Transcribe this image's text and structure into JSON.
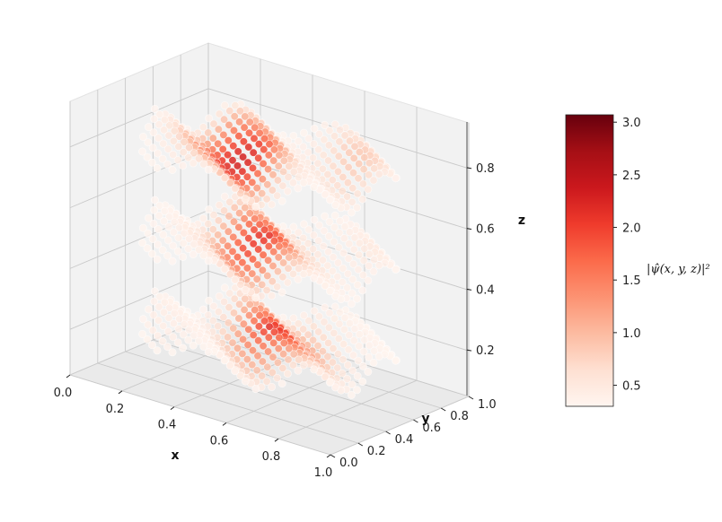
{
  "chart_data": {
    "type": "scatter3d",
    "title": "",
    "xlabel": "x",
    "ylabel": "y",
    "zlabel": "z",
    "xlim": [
      0.0,
      1.0
    ],
    "ylim": [
      0.0,
      1.0
    ],
    "zlim": [
      0.05,
      0.95
    ],
    "x_ticks": [
      "0.0",
      "0.2",
      "0.4",
      "0.6",
      "0.8",
      "1.0"
    ],
    "y_ticks": [
      "0.0",
      "0.2",
      "0.4",
      "0.6",
      "0.8",
      "1.0"
    ],
    "z_ticks": [
      "0.2",
      "0.4",
      "0.6",
      "0.8"
    ],
    "grid": true,
    "colormap": "Reds",
    "colorbar": {
      "label": "|ψ̂(x, y, z)|²",
      "min": 0.3,
      "max": 3.07,
      "ticks": [
        "0.5",
        "1.0",
        "1.5",
        "2.0",
        "2.5",
        "3.0"
      ]
    },
    "layers": [
      {
        "z": 0.2,
        "value_range": [
          0.3,
          2.2
        ]
      },
      {
        "z": 0.5,
        "value_range": [
          0.3,
          2.3
        ]
      },
      {
        "z": 0.8,
        "value_range": [
          0.3,
          3.07
        ]
      }
    ],
    "point_grid_spacing": 0.04,
    "colors": {
      "pane": "#f2f2f2",
      "pane_edge": "#e3e3e3",
      "grid": "#c9c9c9",
      "low": "#fff5f0",
      "high": "#67000d"
    }
  }
}
